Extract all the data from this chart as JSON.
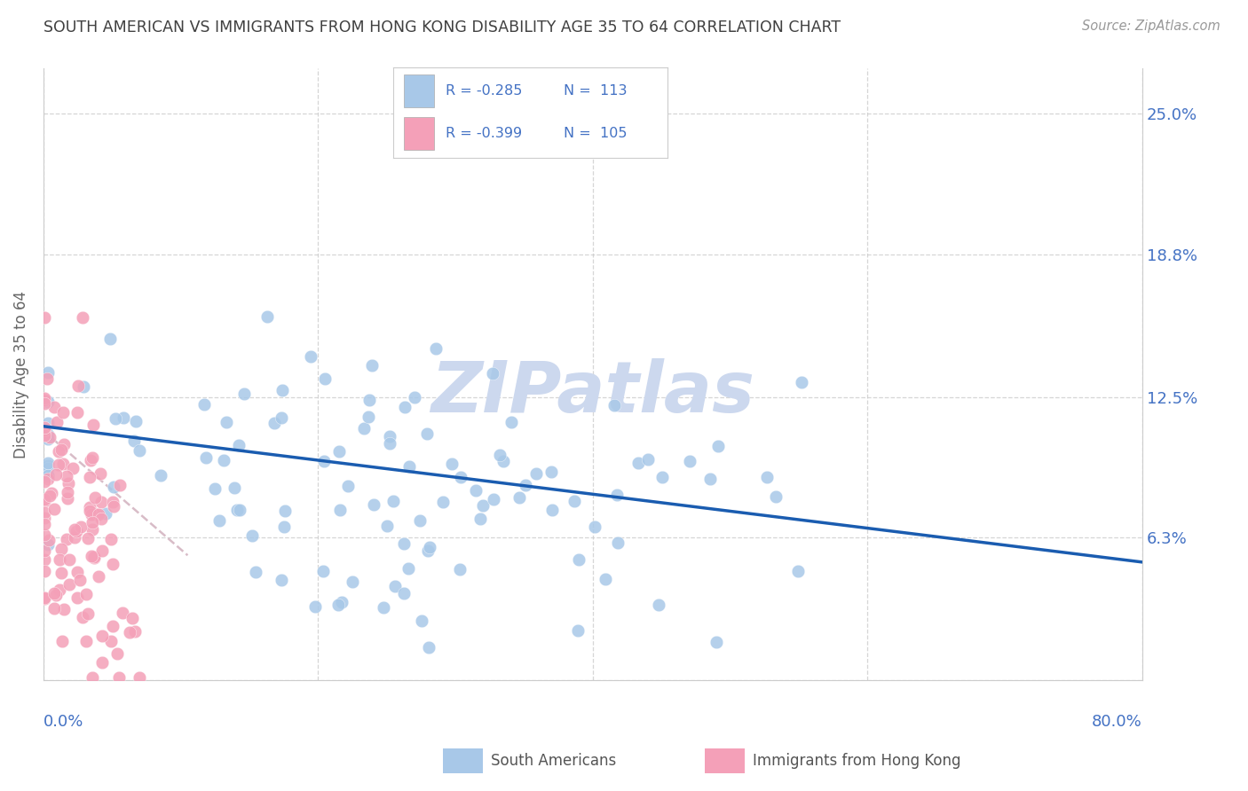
{
  "title": "SOUTH AMERICAN VS IMMIGRANTS FROM HONG KONG DISABILITY AGE 35 TO 64 CORRELATION CHART",
  "source": "Source: ZipAtlas.com",
  "ylabel": "Disability Age 35 to 64",
  "ytick_values": [
    0.0,
    6.3,
    12.5,
    18.8,
    25.0
  ],
  "ytick_labels": [
    "",
    "6.3%",
    "12.5%",
    "18.8%",
    "25.0%"
  ],
  "xlim": [
    0.0,
    80.0
  ],
  "ylim": [
    0.0,
    27.0
  ],
  "color_blue": "#a8c8e8",
  "color_pink": "#f4a0b8",
  "color_blue_line": "#1a5cb0",
  "color_pink_line": "#c8a0b0",
  "watermark_color": "#ccd8ee",
  "grid_color": "#cccccc",
  "title_color": "#404040",
  "source_color": "#999999",
  "axis_label_color": "#4472c4",
  "ylabel_color": "#666666",
  "legend_r1": "R = -0.285",
  "legend_n1": "N =  113",
  "legend_r2": "R = -0.399",
  "legend_n2": "N =  105",
  "sa_trend_x0": 0.0,
  "sa_trend_y0": 11.2,
  "sa_trend_x1": 80.0,
  "sa_trend_y1": 5.2,
  "hk_trend_x0": 0.0,
  "hk_trend_y0": 11.0,
  "hk_trend_x1": 10.5,
  "hk_trend_y1": 5.5
}
